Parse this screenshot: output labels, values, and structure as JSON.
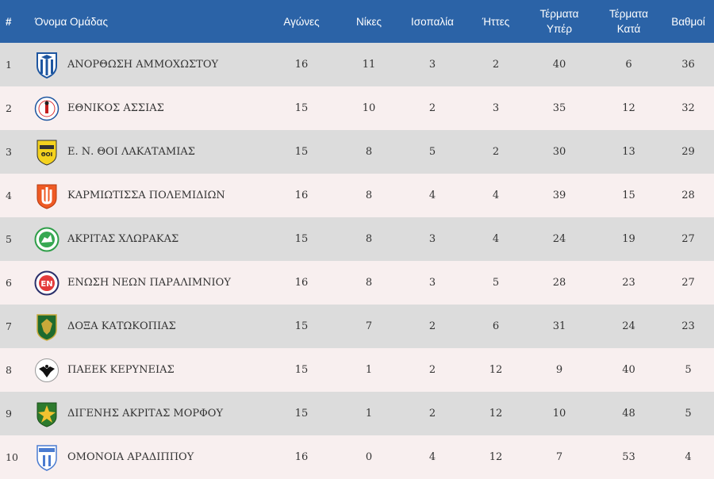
{
  "header": {
    "pos": "#",
    "team": "Όνομα Ομάδας",
    "played": "Αγώνες",
    "wins": "Νίκες",
    "draws": "Ισοπαλία",
    "losses": "Ήττες",
    "goals_for_1": "Τέρματα",
    "goals_for_2": "Υπέρ",
    "goals_against_1": "Τέρματα",
    "goals_against_2": "Κατά",
    "points": "Βαθμοί"
  },
  "colors": {
    "header_bg": "#2b63a7",
    "row_odd": "#dcdcdc",
    "row_even": "#f8efef"
  },
  "rows": [
    {
      "pos": "1",
      "team": "ΑΝΟΡΘΩΣΗ ΑΜΜΟΧΩΣΤΟΥ",
      "played": "16",
      "wins": "11",
      "draws": "3",
      "losses": "2",
      "gf": "40",
      "ga": "6",
      "pts": "36",
      "logo": "anorthosi-crest-icon"
    },
    {
      "pos": "2",
      "team": "ΕΘΝΙΚΟΣ ΑΣΣΙΑΣ",
      "played": "15",
      "wins": "10",
      "draws": "2",
      "losses": "3",
      "gf": "35",
      "ga": "12",
      "pts": "32",
      "logo": "ethnikos-crest-icon"
    },
    {
      "pos": "3",
      "team": "Ε. Ν. ΘΟΙ ΛΑΚΑΤΑΜΙΑΣ",
      "played": "15",
      "wins": "8",
      "draws": "5",
      "losses": "2",
      "gf": "30",
      "ga": "13",
      "pts": "29",
      "logo": "thoi-crest-icon"
    },
    {
      "pos": "4",
      "team": "ΚΑΡΜΙΩΤΙΣΣΑ ΠΟΛΕΜΙΔΙΩΝ",
      "played": "16",
      "wins": "8",
      "draws": "4",
      "losses": "4",
      "gf": "39",
      "ga": "15",
      "pts": "28",
      "logo": "karmiotissa-crest-icon"
    },
    {
      "pos": "5",
      "team": "ΑΚΡΙΤΑΣ ΧΛΩΡΑΚΑΣ",
      "played": "15",
      "wins": "8",
      "draws": "3",
      "losses": "4",
      "gf": "24",
      "ga": "19",
      "pts": "27",
      "logo": "akritas-crest-icon"
    },
    {
      "pos": "6",
      "team": "ΕΝΩΣΗ ΝΕΩΝ ΠΑΡΑΛΙΜΝΙΟΥ",
      "played": "16",
      "wins": "8",
      "draws": "3",
      "losses": "5",
      "gf": "28",
      "ga": "23",
      "pts": "27",
      "logo": "enp-crest-icon"
    },
    {
      "pos": "7",
      "team": "ΔΟΞΑ ΚΑΤΩΚΟΠΙΑΣ",
      "played": "15",
      "wins": "7",
      "draws": "2",
      "losses": "6",
      "gf": "31",
      "ga": "24",
      "pts": "23",
      "logo": "doxa-crest-icon"
    },
    {
      "pos": "8",
      "team": "ΠΑΕΕΚ ΚΕΡΥΝΕΙΑΣ",
      "played": "15",
      "wins": "1",
      "draws": "2",
      "losses": "12",
      "gf": "9",
      "ga": "40",
      "pts": "5",
      "logo": "paeek-crest-icon"
    },
    {
      "pos": "9",
      "team": "ΔΙΓΕΝΗΣ ΑΚΡΙΤΑΣ ΜΟΡΦΟΥ",
      "played": "15",
      "wins": "1",
      "draws": "2",
      "losses": "12",
      "gf": "10",
      "ga": "48",
      "pts": "5",
      "logo": "digenis-crest-icon"
    },
    {
      "pos": "10",
      "team": "ΟΜΟΝΟΙΑ ΑΡΑΔΙΠΠΟΥ",
      "played": "16",
      "wins": "0",
      "draws": "4",
      "losses": "12",
      "gf": "7",
      "ga": "53",
      "pts": "4",
      "logo": "omonia-crest-icon"
    }
  ]
}
